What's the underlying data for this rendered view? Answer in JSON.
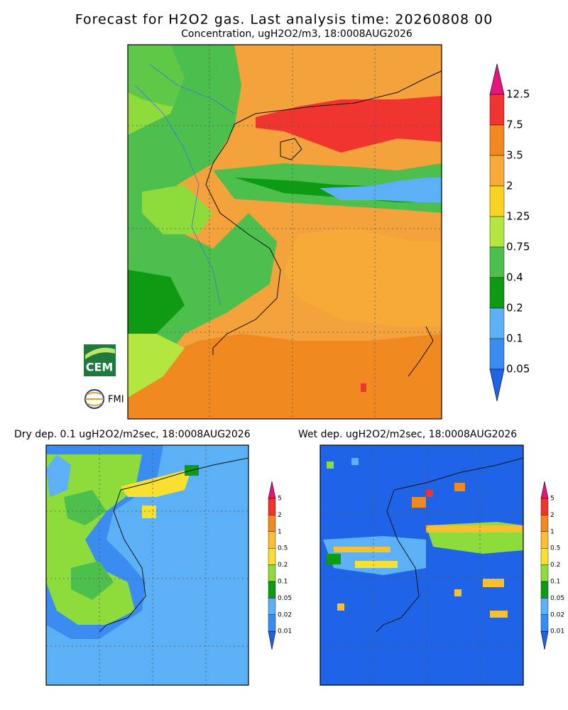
{
  "header": {
    "title": "Forecast for H2O2 gas. Last analysis time: 20260808 00",
    "subtitle": "Concentration, ugH2O2/m3, 18:0008AUG2026"
  },
  "main_map": {
    "legend": {
      "labels": [
        "12.5",
        "7.5",
        "3.5",
        "2",
        "1.25",
        "0.75",
        "0.4",
        "0.2",
        "0.1",
        "0.05"
      ],
      "colors": [
        "#e8137f",
        "#f03530",
        "#f08a20",
        "#f8aa38",
        "#f8d422",
        "#b4e640",
        "#4cbf4c",
        "#0f9a14",
        "#5cb0f6",
        "#3a8cf0",
        "#1f64e6"
      ]
    }
  },
  "dry_map": {
    "title": "Dry dep. 0.1 ugH2O2/m2sec, 18:0008AUG2026",
    "legend": {
      "labels": [
        "5",
        "2",
        "1",
        "0.5",
        "0.2",
        "0.1",
        "0.05",
        "0.02",
        "0.01"
      ],
      "colors": [
        "#e8137f",
        "#f03530",
        "#f08a20",
        "#f8c030",
        "#f8e030",
        "#8edc3c",
        "#0f9a14",
        "#5cb0f6",
        "#3a8cf0",
        "#1f64e6"
      ]
    }
  },
  "wet_map": {
    "title": "Wet dep. ugH2O2/m2sec, 18:0008AUG2026",
    "legend": {
      "labels": [
        "5",
        "2",
        "1",
        "0.5",
        "0.2",
        "0.1",
        "0.05",
        "0.02",
        "0.01"
      ],
      "colors": [
        "#e8137f",
        "#f03530",
        "#f08a20",
        "#f8c030",
        "#f8e030",
        "#8edc3c",
        "#0f9a14",
        "#5cb0f6",
        "#3a8cf0",
        "#1f64e6"
      ]
    }
  },
  "logos": {
    "cem": "CEM",
    "fmi": "FMI"
  }
}
